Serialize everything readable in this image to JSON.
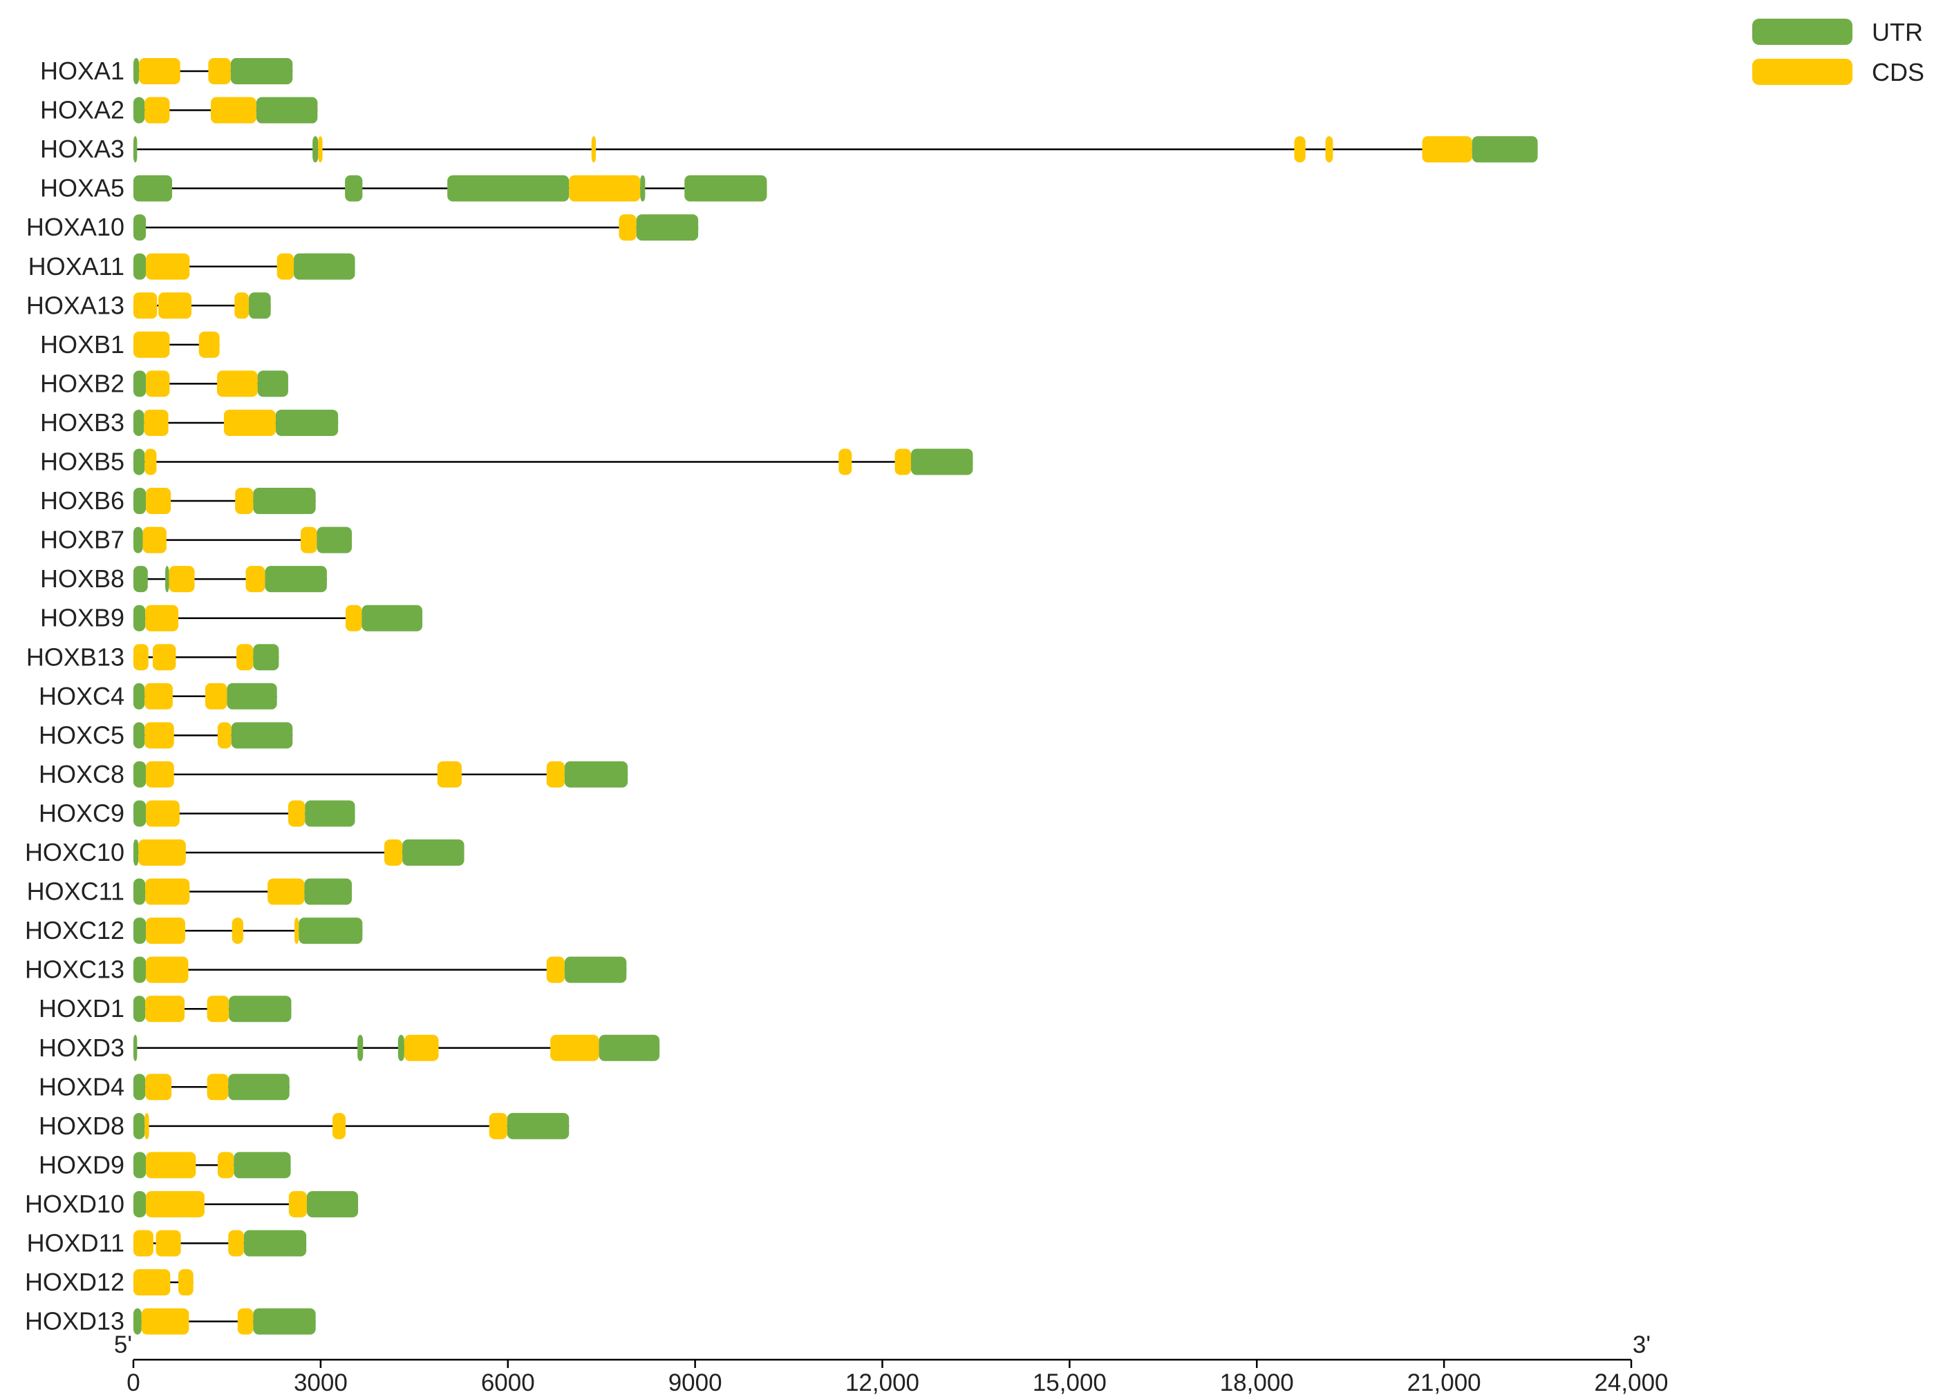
{
  "chart_data": {
    "type": "gene-structure",
    "xlim": [
      0,
      24000
    ],
    "x_ticks": [
      "0",
      "3000",
      "6000",
      "9000",
      "12,000",
      "15,000",
      "18,000",
      "21,000",
      "24,000"
    ],
    "x_tick_values": [
      0,
      3000,
      6000,
      9000,
      12000,
      15000,
      18000,
      21000,
      24000
    ],
    "end_labels": {
      "five_prime": "5'",
      "three_prime": "3'"
    },
    "legend": [
      {
        "name": "UTR",
        "color": "#70ad47"
      },
      {
        "name": "CDS",
        "color": "#ffc800"
      }
    ],
    "colors": {
      "UTR": "#70ad47",
      "CDS": "#ffc800",
      "line": "#000000"
    },
    "genes": [
      {
        "name": "HOXA1",
        "length": 2550,
        "features": [
          {
            "type": "UTR",
            "start": 0,
            "end": 90
          },
          {
            "type": "CDS",
            "start": 90,
            "end": 750
          },
          {
            "type": "CDS",
            "start": 1200,
            "end": 1560
          },
          {
            "type": "UTR",
            "start": 1560,
            "end": 2550
          }
        ]
      },
      {
        "name": "HOXA2",
        "length": 2950,
        "features": [
          {
            "type": "UTR",
            "start": 0,
            "end": 180
          },
          {
            "type": "CDS",
            "start": 180,
            "end": 580
          },
          {
            "type": "CDS",
            "start": 1240,
            "end": 1970
          },
          {
            "type": "UTR",
            "start": 1970,
            "end": 2950
          }
        ]
      },
      {
        "name": "HOXA3",
        "length": 22500,
        "features": [
          {
            "type": "UTR",
            "start": 0,
            "end": 60
          },
          {
            "type": "UTR",
            "start": 2870,
            "end": 2960
          },
          {
            "type": "CDS",
            "start": 2960,
            "end": 3030
          },
          {
            "type": "CDS",
            "start": 7340,
            "end": 7410
          },
          {
            "type": "CDS",
            "start": 18600,
            "end": 18780
          },
          {
            "type": "CDS",
            "start": 19100,
            "end": 19220
          },
          {
            "type": "CDS",
            "start": 20650,
            "end": 21450
          },
          {
            "type": "UTR",
            "start": 21450,
            "end": 22500
          }
        ]
      },
      {
        "name": "HOXA5",
        "length": 10150,
        "features": [
          {
            "type": "UTR",
            "start": 0,
            "end": 620
          },
          {
            "type": "UTR",
            "start": 3390,
            "end": 3670
          },
          {
            "type": "UTR",
            "start": 5030,
            "end": 6980
          },
          {
            "type": "CDS",
            "start": 6980,
            "end": 8120
          },
          {
            "type": "UTR",
            "start": 8120,
            "end": 8200
          },
          {
            "type": "UTR",
            "start": 8830,
            "end": 10150
          }
        ]
      },
      {
        "name": "HOXA10",
        "length": 9050,
        "features": [
          {
            "type": "UTR",
            "start": 0,
            "end": 200
          },
          {
            "type": "CDS",
            "start": 7780,
            "end": 8060
          },
          {
            "type": "UTR",
            "start": 8060,
            "end": 9050
          }
        ]
      },
      {
        "name": "HOXA11",
        "length": 3550,
        "features": [
          {
            "type": "UTR",
            "start": 0,
            "end": 200
          },
          {
            "type": "CDS",
            "start": 200,
            "end": 900
          },
          {
            "type": "CDS",
            "start": 2300,
            "end": 2570
          },
          {
            "type": "UTR",
            "start": 2570,
            "end": 3550
          }
        ]
      },
      {
        "name": "HOXA13",
        "length": 2200,
        "features": [
          {
            "type": "CDS",
            "start": 0,
            "end": 380
          },
          {
            "type": "CDS",
            "start": 400,
            "end": 930
          },
          {
            "type": "CDS",
            "start": 1620,
            "end": 1850
          },
          {
            "type": "UTR",
            "start": 1850,
            "end": 2200
          }
        ]
      },
      {
        "name": "HOXB1",
        "length": 1380,
        "features": [
          {
            "type": "CDS",
            "start": 0,
            "end": 580
          },
          {
            "type": "CDS",
            "start": 1050,
            "end": 1380
          }
        ]
      },
      {
        "name": "HOXB2",
        "length": 2480,
        "features": [
          {
            "type": "UTR",
            "start": 0,
            "end": 200
          },
          {
            "type": "CDS",
            "start": 200,
            "end": 580
          },
          {
            "type": "CDS",
            "start": 1340,
            "end": 1990
          },
          {
            "type": "UTR",
            "start": 1990,
            "end": 2480
          }
        ]
      },
      {
        "name": "HOXB3",
        "length": 3280,
        "features": [
          {
            "type": "UTR",
            "start": 0,
            "end": 170
          },
          {
            "type": "CDS",
            "start": 170,
            "end": 560
          },
          {
            "type": "CDS",
            "start": 1450,
            "end": 2280
          },
          {
            "type": "UTR",
            "start": 2280,
            "end": 3280
          }
        ]
      },
      {
        "name": "HOXB5",
        "length": 13450,
        "features": [
          {
            "type": "UTR",
            "start": 0,
            "end": 180
          },
          {
            "type": "CDS",
            "start": 180,
            "end": 370
          },
          {
            "type": "CDS",
            "start": 11300,
            "end": 11510
          },
          {
            "type": "CDS",
            "start": 12200,
            "end": 12460
          },
          {
            "type": "UTR",
            "start": 12460,
            "end": 13450
          }
        ]
      },
      {
        "name": "HOXB6",
        "length": 2920,
        "features": [
          {
            "type": "UTR",
            "start": 0,
            "end": 200
          },
          {
            "type": "CDS",
            "start": 200,
            "end": 600
          },
          {
            "type": "CDS",
            "start": 1630,
            "end": 1920
          },
          {
            "type": "UTR",
            "start": 1920,
            "end": 2920
          }
        ]
      },
      {
        "name": "HOXB7",
        "length": 3500,
        "features": [
          {
            "type": "UTR",
            "start": 0,
            "end": 150
          },
          {
            "type": "CDS",
            "start": 150,
            "end": 530
          },
          {
            "type": "CDS",
            "start": 2680,
            "end": 2940
          },
          {
            "type": "UTR",
            "start": 2940,
            "end": 3500
          }
        ]
      },
      {
        "name": "HOXB8",
        "length": 3100,
        "features": [
          {
            "type": "UTR",
            "start": 0,
            "end": 230
          },
          {
            "type": "UTR",
            "start": 510,
            "end": 570
          },
          {
            "type": "CDS",
            "start": 570,
            "end": 980
          },
          {
            "type": "CDS",
            "start": 1800,
            "end": 2110
          },
          {
            "type": "UTR",
            "start": 2110,
            "end": 3100
          }
        ]
      },
      {
        "name": "HOXB9",
        "length": 4630,
        "features": [
          {
            "type": "UTR",
            "start": 0,
            "end": 190
          },
          {
            "type": "CDS",
            "start": 190,
            "end": 720
          },
          {
            "type": "CDS",
            "start": 3400,
            "end": 3660
          },
          {
            "type": "UTR",
            "start": 3660,
            "end": 4630
          }
        ]
      },
      {
        "name": "HOXB13",
        "length": 2330,
        "features": [
          {
            "type": "CDS",
            "start": 0,
            "end": 240
          },
          {
            "type": "CDS",
            "start": 310,
            "end": 680
          },
          {
            "type": "CDS",
            "start": 1650,
            "end": 1920
          },
          {
            "type": "UTR",
            "start": 1920,
            "end": 2330
          }
        ]
      },
      {
        "name": "HOXC4",
        "length": 2300,
        "features": [
          {
            "type": "UTR",
            "start": 0,
            "end": 180
          },
          {
            "type": "CDS",
            "start": 180,
            "end": 630
          },
          {
            "type": "CDS",
            "start": 1150,
            "end": 1500
          },
          {
            "type": "UTR",
            "start": 1500,
            "end": 2300
          }
        ]
      },
      {
        "name": "HOXC5",
        "length": 2550,
        "features": [
          {
            "type": "UTR",
            "start": 0,
            "end": 180
          },
          {
            "type": "CDS",
            "start": 180,
            "end": 650
          },
          {
            "type": "CDS",
            "start": 1350,
            "end": 1570
          },
          {
            "type": "UTR",
            "start": 1570,
            "end": 2550
          }
        ]
      },
      {
        "name": "HOXC8",
        "length": 7920,
        "features": [
          {
            "type": "UTR",
            "start": 0,
            "end": 200
          },
          {
            "type": "CDS",
            "start": 200,
            "end": 650
          },
          {
            "type": "CDS",
            "start": 4870,
            "end": 5260
          },
          {
            "type": "CDS",
            "start": 6620,
            "end": 6910
          },
          {
            "type": "UTR",
            "start": 6910,
            "end": 7920
          }
        ]
      },
      {
        "name": "HOXC9",
        "length": 3550,
        "features": [
          {
            "type": "UTR",
            "start": 0,
            "end": 200
          },
          {
            "type": "CDS",
            "start": 200,
            "end": 740
          },
          {
            "type": "CDS",
            "start": 2480,
            "end": 2750
          },
          {
            "type": "UTR",
            "start": 2750,
            "end": 3550
          }
        ]
      },
      {
        "name": "HOXC10",
        "length": 5300,
        "features": [
          {
            "type": "UTR",
            "start": 0,
            "end": 80
          },
          {
            "type": "CDS",
            "start": 80,
            "end": 840
          },
          {
            "type": "CDS",
            "start": 4020,
            "end": 4310
          },
          {
            "type": "UTR",
            "start": 4310,
            "end": 5300
          }
        ]
      },
      {
        "name": "HOXC11",
        "length": 3500,
        "features": [
          {
            "type": "UTR",
            "start": 0,
            "end": 190
          },
          {
            "type": "CDS",
            "start": 190,
            "end": 900
          },
          {
            "type": "CDS",
            "start": 2150,
            "end": 2740
          },
          {
            "type": "UTR",
            "start": 2740,
            "end": 3500
          }
        ]
      },
      {
        "name": "HOXC12",
        "length": 3670,
        "features": [
          {
            "type": "UTR",
            "start": 0,
            "end": 200
          },
          {
            "type": "CDS",
            "start": 200,
            "end": 830
          },
          {
            "type": "CDS",
            "start": 1580,
            "end": 1760
          },
          {
            "type": "CDS",
            "start": 2580,
            "end": 2650
          },
          {
            "type": "UTR",
            "start": 2650,
            "end": 3670
          }
        ]
      },
      {
        "name": "HOXC13",
        "length": 7900,
        "features": [
          {
            "type": "UTR",
            "start": 0,
            "end": 200
          },
          {
            "type": "CDS",
            "start": 200,
            "end": 880
          },
          {
            "type": "CDS",
            "start": 6620,
            "end": 6910
          },
          {
            "type": "UTR",
            "start": 6910,
            "end": 7900
          }
        ]
      },
      {
        "name": "HOXD1",
        "length": 2530,
        "features": [
          {
            "type": "UTR",
            "start": 0,
            "end": 190
          },
          {
            "type": "CDS",
            "start": 190,
            "end": 820
          },
          {
            "type": "CDS",
            "start": 1180,
            "end": 1530
          },
          {
            "type": "UTR",
            "start": 1530,
            "end": 2530
          }
        ]
      },
      {
        "name": "HOXD3",
        "length": 8430,
        "features": [
          {
            "type": "UTR",
            "start": 0,
            "end": 60
          },
          {
            "type": "UTR",
            "start": 3590,
            "end": 3680
          },
          {
            "type": "UTR",
            "start": 4240,
            "end": 4340
          },
          {
            "type": "CDS",
            "start": 4340,
            "end": 4890
          },
          {
            "type": "CDS",
            "start": 6680,
            "end": 7460
          },
          {
            "type": "UTR",
            "start": 7460,
            "end": 8430
          }
        ]
      },
      {
        "name": "HOXD4",
        "length": 2500,
        "features": [
          {
            "type": "UTR",
            "start": 0,
            "end": 190
          },
          {
            "type": "CDS",
            "start": 190,
            "end": 610
          },
          {
            "type": "CDS",
            "start": 1180,
            "end": 1520
          },
          {
            "type": "UTR",
            "start": 1520,
            "end": 2500
          }
        ]
      },
      {
        "name": "HOXD8",
        "length": 6980,
        "features": [
          {
            "type": "UTR",
            "start": 0,
            "end": 180
          },
          {
            "type": "CDS",
            "start": 180,
            "end": 250
          },
          {
            "type": "CDS",
            "start": 3190,
            "end": 3400
          },
          {
            "type": "CDS",
            "start": 5700,
            "end": 5990
          },
          {
            "type": "UTR",
            "start": 5990,
            "end": 6980
          }
        ]
      },
      {
        "name": "HOXD9",
        "length": 2520,
        "features": [
          {
            "type": "UTR",
            "start": 0,
            "end": 200
          },
          {
            "type": "CDS",
            "start": 200,
            "end": 1000
          },
          {
            "type": "CDS",
            "start": 1350,
            "end": 1610
          },
          {
            "type": "UTR",
            "start": 1610,
            "end": 2520
          }
        ]
      },
      {
        "name": "HOXD10",
        "length": 3600,
        "features": [
          {
            "type": "UTR",
            "start": 0,
            "end": 200
          },
          {
            "type": "CDS",
            "start": 200,
            "end": 1140
          },
          {
            "type": "CDS",
            "start": 2490,
            "end": 2780
          },
          {
            "type": "UTR",
            "start": 2780,
            "end": 3600
          }
        ]
      },
      {
        "name": "HOXD11",
        "length": 2770,
        "features": [
          {
            "type": "CDS",
            "start": 0,
            "end": 320
          },
          {
            "type": "CDS",
            "start": 360,
            "end": 760
          },
          {
            "type": "CDS",
            "start": 1520,
            "end": 1770
          },
          {
            "type": "UTR",
            "start": 1770,
            "end": 2770
          }
        ]
      },
      {
        "name": "HOXD12",
        "length": 960,
        "features": [
          {
            "type": "CDS",
            "start": 0,
            "end": 590
          },
          {
            "type": "CDS",
            "start": 720,
            "end": 960
          }
        ]
      },
      {
        "name": "HOXD13",
        "length": 2920,
        "features": [
          {
            "type": "UTR",
            "start": 0,
            "end": 130
          },
          {
            "type": "CDS",
            "start": 130,
            "end": 890
          },
          {
            "type": "CDS",
            "start": 1670,
            "end": 1920
          },
          {
            "type": "UTR",
            "start": 1920,
            "end": 2920
          }
        ]
      }
    ]
  }
}
